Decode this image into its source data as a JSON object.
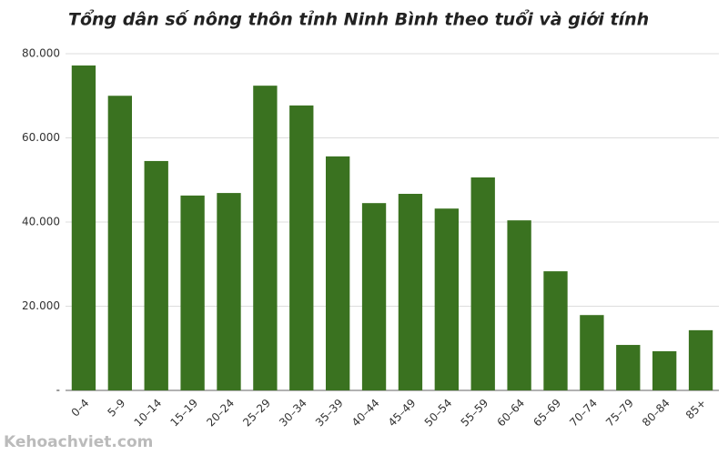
{
  "chart_data": {
    "type": "bar",
    "title": "Tổng dân số nông thôn tỉnh Ninh Bình theo tuổi và giới tính",
    "categories": [
      "0–4",
      "5–9",
      "10–14",
      "15–19",
      "20–24",
      "25–29",
      "30–34",
      "35–39",
      "40–44",
      "45–49",
      "50–54",
      "55–59",
      "60–64",
      "65–69",
      "70–74",
      "75–79",
      "80–84",
      "85+"
    ],
    "values": [
      77200,
      70000,
      54500,
      46300,
      46900,
      72400,
      67700,
      55600,
      44500,
      46700,
      43200,
      50600,
      40400,
      28300,
      17900,
      10800,
      9300,
      14300
    ],
    "color": "#3a7220",
    "ylim": [
      0,
      80000
    ],
    "yticks": [
      {
        "value": 0,
        "label": "-"
      },
      {
        "value": 20000,
        "label": "20.000"
      },
      {
        "value": 40000,
        "label": "40.000"
      },
      {
        "value": 60000,
        "label": "60.000"
      },
      {
        "value": 80000,
        "label": "80.000"
      }
    ],
    "grid": true,
    "watermark": "Kehoachviet.com"
  }
}
